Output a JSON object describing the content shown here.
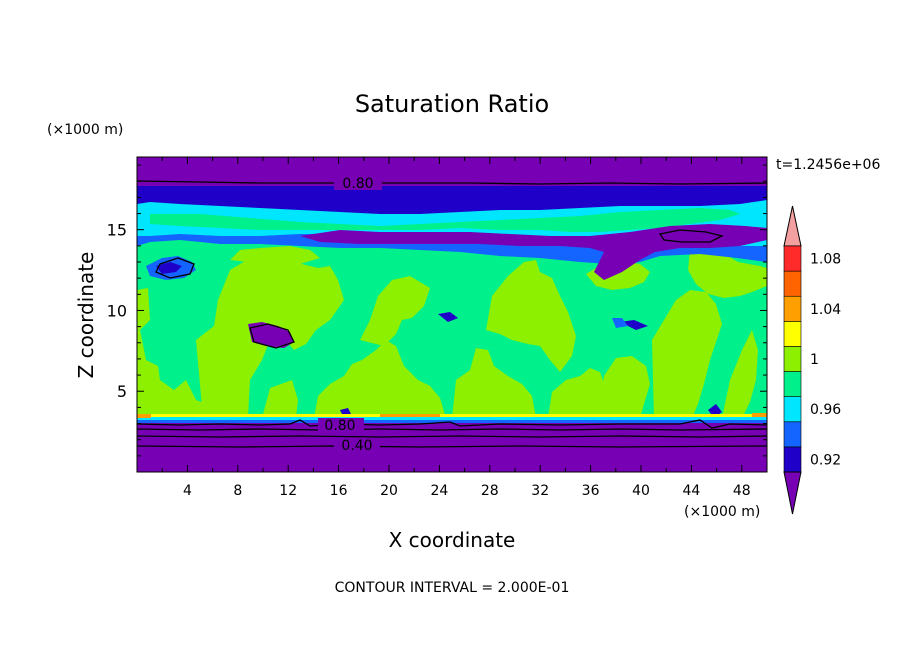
{
  "chart_data": {
    "type": "heatmap",
    "title": "Saturation Ratio",
    "xlabel": "X coordinate",
    "ylabel": "Z coordinate",
    "x_unit": "(×1000 m)",
    "y_unit": "(×1000 m)",
    "xlim": [
      0,
      50
    ],
    "ylim": [
      0,
      19.5
    ],
    "x_ticks": [
      "4",
      "8",
      "12",
      "16",
      "20",
      "24",
      "28",
      "32",
      "36",
      "40",
      "44",
      "48"
    ],
    "y_ticks": [
      "5",
      "10",
      "15"
    ],
    "time_label": "t=1.2456e+06",
    "footer": "CONTOUR INTERVAL = 2.000E-01",
    "contour_labels": [
      "0.80",
      "0.80",
      "0.40"
    ],
    "colorbar": {
      "labels": [
        "1.08",
        "1.04",
        "1",
        "0.96",
        "0.92"
      ],
      "colors": [
        "#7800b4",
        "#1e00c8",
        "#1464ff",
        "#00e6ff",
        "#00f08c",
        "#8cf000",
        "#ffff00",
        "#ffa000",
        "#ff6400",
        "#ff2a2a",
        "#f5a0a0"
      ]
    },
    "fill_colors": {
      "very_dry": "#7800b4",
      "dry": "#1e00c8",
      "moist": "#1464ff",
      "near_sat": "#00e6ff",
      "saturated": "#00f08c",
      "supersat": "#8cf000",
      "high": "#ffff00",
      "higher": "#ffa000"
    }
  }
}
